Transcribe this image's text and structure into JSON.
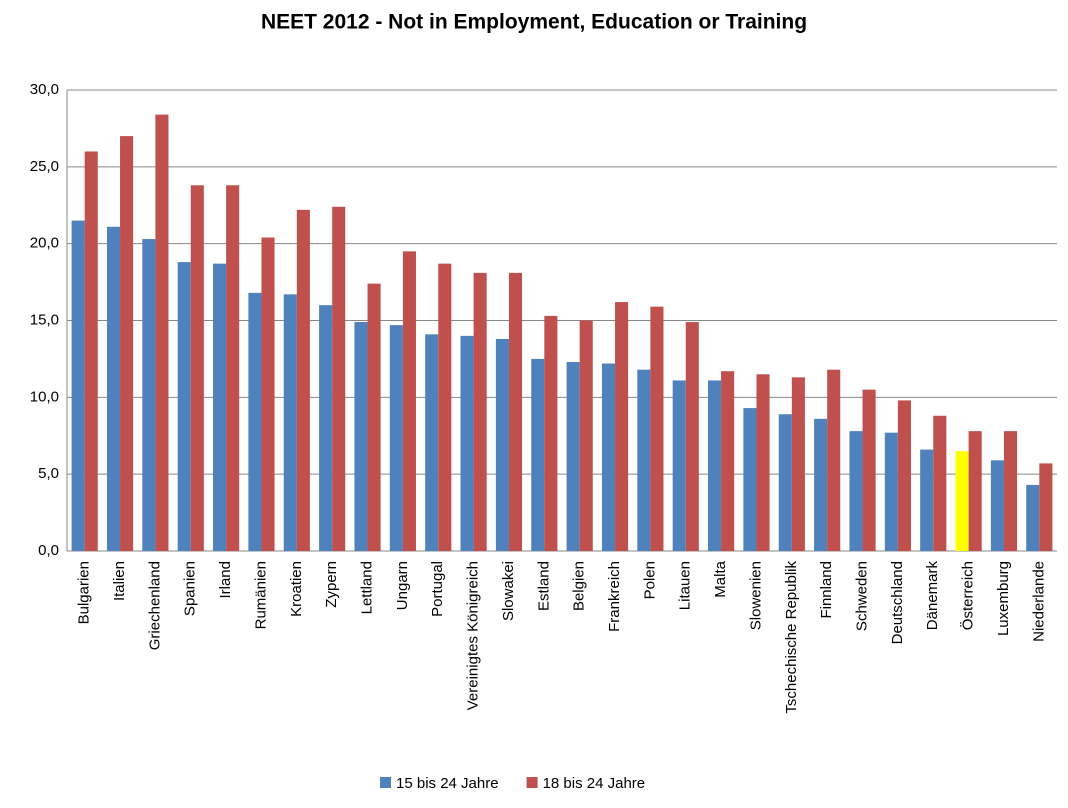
{
  "chart_data": {
    "type": "bar",
    "title": "NEET 2012 - Not in Employment, Education or Training",
    "categories": [
      "Bulgarien",
      "Italien",
      "Griechenland",
      "Spanien",
      "Irland",
      "Rumänien",
      "Kroatien",
      "Zypern",
      "Lettland",
      "Ungarn",
      "Portugal",
      "Vereinigtes Königreich",
      "Slowakei",
      "Estland",
      "Belgien",
      "Frankreich",
      "Polen",
      "Litauen",
      "Malta",
      "Slowenien",
      "Tschechische Republik",
      "Finnland",
      "Schweden",
      "Deutschland",
      "Dänemark",
      "Österreich",
      "Luxemburg",
      "Niederlande"
    ],
    "series": [
      {
        "name": "15 bis 24 Jahre",
        "color": "#4f81bd",
        "values": [
          21.5,
          21.1,
          20.3,
          18.8,
          18.7,
          16.8,
          16.7,
          16.0,
          14.9,
          14.7,
          14.1,
          14.0,
          13.8,
          12.5,
          12.3,
          12.2,
          11.8,
          11.1,
          11.1,
          9.3,
          8.9,
          8.6,
          7.8,
          7.7,
          6.6,
          6.5,
          5.9,
          4.3
        ]
      },
      {
        "name": "18 bis 24 Jahre",
        "color": "#c0504d",
        "values": [
          26.0,
          27.0,
          28.4,
          23.8,
          23.8,
          20.4,
          22.2,
          22.4,
          17.4,
          19.5,
          18.7,
          18.1,
          18.1,
          15.3,
          15.0,
          16.2,
          15.9,
          14.9,
          11.7,
          11.5,
          11.3,
          11.8,
          10.5,
          9.8,
          8.8,
          7.8,
          7.8,
          5.7
        ]
      }
    ],
    "highlight": {
      "category": "Österreich",
      "series": "15 bis 24 Jahre",
      "color": "#ffff00"
    },
    "ylim": [
      0,
      30
    ],
    "yticks": [
      {
        "value": 0,
        "label": "0,0"
      },
      {
        "value": 5,
        "label": "5,0"
      },
      {
        "value": 10,
        "label": "10,0"
      },
      {
        "value": 15,
        "label": "15,0"
      },
      {
        "value": 20,
        "label": "20,0"
      },
      {
        "value": 25,
        "label": "25,0"
      },
      {
        "value": 30,
        "label": "30,0"
      }
    ],
    "grid": true,
    "legend": "bottom"
  }
}
